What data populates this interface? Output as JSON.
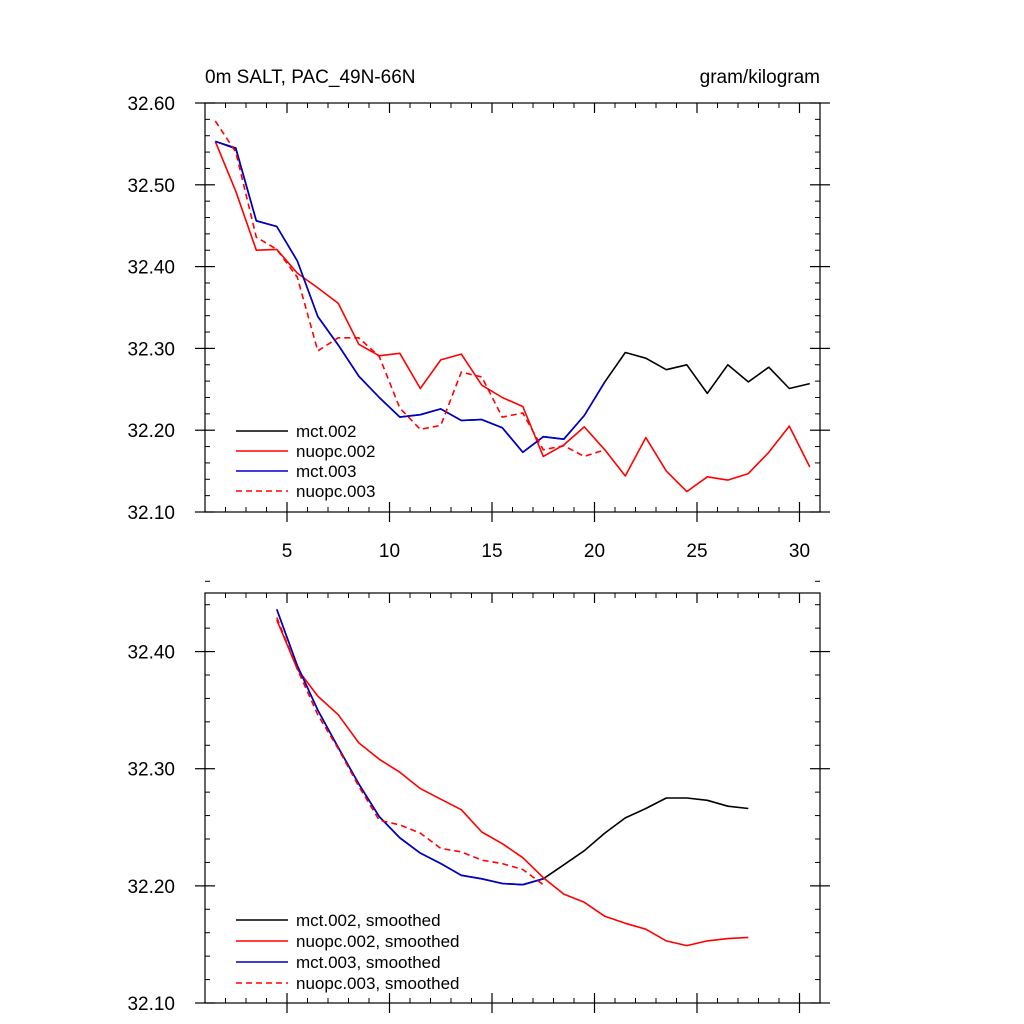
{
  "chart_data": [
    {
      "type": "line",
      "title": "0m SALT, PAC_49N-66N",
      "units": "gram/kilogram",
      "xlim": [
        1,
        31
      ],
      "ylim": [
        32.1,
        32.6
      ],
      "x_ticks": [
        5,
        10,
        15,
        20,
        25,
        30
      ],
      "x_tick_labels": [
        "5",
        "10",
        "15",
        "20",
        "25",
        "30"
      ],
      "y_ticks": [
        32.1,
        32.2,
        32.3,
        32.4,
        32.5,
        32.6
      ],
      "y_tick_labels": [
        "32.10",
        "32.20",
        "32.30",
        "32.40",
        "32.50",
        "32.60"
      ],
      "legend_position": "bottom-left",
      "series": [
        {
          "name": "mct.002",
          "color": "#000000",
          "dash": "solid",
          "x": [
            1.5,
            2.5,
            3.5,
            4.5,
            5.5,
            6.5,
            7.5,
            8.5,
            9.5,
            10.5,
            11.5,
            12.5,
            13.5,
            14.5,
            15.5,
            16.5,
            17.5,
            18.5,
            19.5,
            20.5,
            21.5,
            22.5,
            23.5,
            24.5,
            25.5,
            26.5,
            27.5,
            28.5,
            29.5,
            30.5
          ],
          "values": [
            32.553,
            32.545,
            32.456,
            32.449,
            32.407,
            32.339,
            32.304,
            32.266,
            32.24,
            32.216,
            32.219,
            32.226,
            32.212,
            32.213,
            32.203,
            32.173,
            32.192,
            32.189,
            32.218,
            32.259,
            32.295,
            32.288,
            32.274,
            32.28,
            32.245,
            32.28,
            32.259,
            32.277,
            32.251,
            32.257
          ]
        },
        {
          "name": "nuopc.002",
          "color": "#ff0000",
          "dash": "solid",
          "x": [
            1.5,
            2.5,
            3.5,
            4.5,
            5.5,
            6.5,
            7.5,
            8.5,
            9.5,
            10.5,
            11.5,
            12.5,
            13.5,
            14.5,
            15.5,
            16.5,
            17.5,
            18.5,
            19.5,
            20.5,
            21.5,
            22.5,
            23.5,
            24.5,
            25.5,
            26.5,
            27.5,
            28.5,
            29.5,
            30.5
          ],
          "values": [
            32.553,
            32.492,
            32.42,
            32.421,
            32.392,
            32.374,
            32.355,
            32.305,
            32.291,
            32.294,
            32.251,
            32.286,
            32.293,
            32.255,
            32.24,
            32.229,
            32.168,
            32.182,
            32.204,
            32.176,
            32.144,
            32.191,
            32.15,
            32.125,
            32.143,
            32.139,
            32.147,
            32.173,
            32.205,
            32.155
          ]
        },
        {
          "name": "mct.003",
          "color": "#0000cc",
          "dash": "solid",
          "x": [
            1.5,
            2.5,
            3.5,
            4.5,
            5.5,
            6.5,
            7.5,
            8.5,
            9.5,
            10.5,
            11.5,
            12.5,
            13.5,
            14.5,
            15.5,
            16.5,
            17.5,
            18.5,
            19.5,
            20.5
          ],
          "values": [
            32.553,
            32.544,
            32.456,
            32.449,
            32.407,
            32.339,
            32.304,
            32.266,
            32.24,
            32.216,
            32.219,
            32.226,
            32.212,
            32.213,
            32.203,
            32.173,
            32.192,
            32.189,
            32.218,
            32.259
          ]
        },
        {
          "name": "nuopc.003",
          "color": "#ff0000",
          "dash": "dashed",
          "x": [
            1.5,
            2.5,
            3.5,
            4.5,
            5.5,
            6.5,
            7.5,
            8.5,
            9.5,
            10.5,
            11.5,
            12.5,
            13.5,
            14.5,
            15.5,
            16.5,
            17.5,
            18.5,
            19.5,
            20.5
          ],
          "values": [
            32.578,
            32.54,
            32.436,
            32.421,
            32.387,
            32.297,
            32.313,
            32.313,
            32.29,
            32.227,
            32.201,
            32.206,
            32.271,
            32.265,
            32.216,
            32.221,
            32.176,
            32.181,
            32.168,
            32.176
          ]
        }
      ]
    },
    {
      "type": "line",
      "title": "",
      "xlim": [
        1,
        31
      ],
      "ylim": [
        32.1,
        32.45
      ],
      "x_ticks": [
        5,
        10,
        15,
        20,
        25,
        30
      ],
      "x_tick_labels": [],
      "y_ticks": [
        32.1,
        32.2,
        32.3,
        32.4
      ],
      "y_tick_labels": [
        "32.10",
        "32.20",
        "32.30",
        "32.40"
      ],
      "legend_position": "bottom-left",
      "series": [
        {
          "name": "mct.002, smoothed",
          "color": "#000000",
          "dash": "solid",
          "x": [
            4.5,
            5.5,
            6.5,
            7.5,
            8.5,
            9.5,
            10.5,
            11.5,
            12.5,
            13.5,
            14.5,
            15.5,
            16.5,
            17.5,
            18.5,
            19.5,
            20.5,
            21.5,
            22.5,
            23.5,
            24.5,
            25.5,
            26.5,
            27.5
          ],
          "values": [
            32.436,
            32.388,
            32.35,
            32.318,
            32.287,
            32.259,
            32.241,
            32.228,
            32.219,
            32.209,
            32.206,
            32.202,
            32.201,
            32.206,
            32.218,
            32.23,
            32.245,
            32.258,
            32.266,
            32.275,
            32.275,
            32.273,
            32.268,
            32.266
          ]
        },
        {
          "name": "nuopc.002, smoothed",
          "color": "#ff0000",
          "dash": "solid",
          "x": [
            4.5,
            5.5,
            6.5,
            7.5,
            8.5,
            9.5,
            10.5,
            11.5,
            12.5,
            13.5,
            14.5,
            15.5,
            16.5,
            17.5,
            18.5,
            19.5,
            20.5,
            21.5,
            22.5,
            23.5,
            24.5,
            25.5,
            26.5,
            27.5
          ],
          "values": [
            32.427,
            32.385,
            32.362,
            32.346,
            32.322,
            32.308,
            32.297,
            32.283,
            32.274,
            32.265,
            32.246,
            32.236,
            32.224,
            32.207,
            32.193,
            32.186,
            32.174,
            32.168,
            32.163,
            32.153,
            32.149,
            32.153,
            32.155,
            32.156
          ]
        },
        {
          "name": "mct.003, smoothed",
          "color": "#0000cc",
          "dash": "solid",
          "x": [
            4.5,
            5.5,
            6.5,
            7.5,
            8.5,
            9.5,
            10.5,
            11.5,
            12.5,
            13.5,
            14.5,
            15.5,
            16.5,
            17.5
          ],
          "values": [
            32.436,
            32.388,
            32.35,
            32.318,
            32.287,
            32.259,
            32.241,
            32.228,
            32.219,
            32.209,
            32.206,
            32.202,
            32.201,
            32.206
          ]
        },
        {
          "name": "nuopc.003, smoothed",
          "color": "#ff0000",
          "dash": "dashed",
          "x": [
            4.5,
            5.5,
            6.5,
            7.5,
            8.5,
            9.5,
            10.5,
            11.5,
            12.5,
            13.5,
            14.5,
            15.5,
            16.5,
            17.5
          ],
          "values": [
            32.429,
            32.385,
            32.346,
            32.317,
            32.285,
            32.256,
            32.252,
            32.245,
            32.232,
            32.229,
            32.222,
            32.219,
            32.214,
            32.201
          ]
        }
      ]
    }
  ]
}
